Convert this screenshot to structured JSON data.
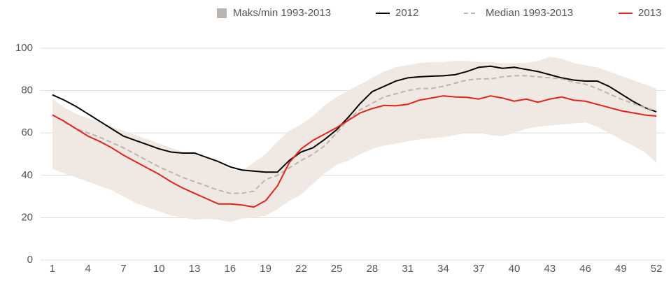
{
  "chart_data": {
    "type": "line",
    "x": [
      1,
      2,
      3,
      4,
      5,
      6,
      7,
      8,
      9,
      10,
      11,
      12,
      13,
      14,
      15,
      16,
      17,
      18,
      19,
      20,
      21,
      22,
      23,
      24,
      25,
      26,
      27,
      28,
      29,
      30,
      31,
      32,
      33,
      34,
      35,
      36,
      37,
      38,
      39,
      40,
      41,
      42,
      43,
      44,
      45,
      46,
      47,
      48,
      49,
      50,
      51,
      52
    ],
    "xlim": [
      0,
      52.7
    ],
    "xticks": [
      1,
      4,
      7,
      10,
      13,
      16,
      19,
      22,
      25,
      28,
      31,
      34,
      37,
      40,
      43,
      46,
      49,
      52
    ],
    "ylim": [
      0,
      100
    ],
    "yticks": [
      0,
      20,
      40,
      60,
      80,
      100
    ],
    "grid": true,
    "legend": "top-right",
    "band": {
      "name": "Maks/min 1993-2013",
      "color": "#efe8e3",
      "max": [
        76,
        72,
        69,
        67,
        65,
        63,
        61,
        59,
        57,
        55,
        53,
        51,
        50,
        48,
        46,
        43,
        42,
        46,
        50,
        56,
        61,
        64,
        68,
        73,
        77,
        80,
        83,
        86,
        89,
        91,
        92,
        93,
        93.5,
        93.5,
        94,
        94,
        93.5,
        93.5,
        93,
        93,
        93,
        94,
        96,
        95,
        93,
        92,
        91,
        89,
        87,
        85,
        83,
        81
      ],
      "min": [
        43,
        41,
        39,
        37,
        35,
        33,
        30,
        27,
        25,
        23,
        21,
        20,
        19,
        19.5,
        19,
        18,
        19.5,
        20,
        21,
        24,
        28,
        31,
        36,
        41,
        45,
        47,
        50,
        52.5,
        54,
        55,
        56,
        57,
        57.5,
        58,
        59,
        60,
        60,
        59,
        58.5,
        60,
        62,
        63,
        63.5,
        64,
        64.5,
        65,
        63,
        60,
        57,
        54,
        51,
        46
      ]
    },
    "series": [
      {
        "name": "2012",
        "color": "#000000",
        "dash": false,
        "values": [
          78,
          75.5,
          72.5,
          69,
          65.5,
          62,
          58.5,
          56.5,
          54.5,
          52.5,
          51,
          50.5,
          50.5,
          48.5,
          46.5,
          44,
          42.5,
          42,
          41.5,
          41.5,
          47,
          51,
          53,
          57,
          61.5,
          67.5,
          74,
          79.5,
          82,
          84.5,
          86,
          86.5,
          86.8,
          87,
          87.5,
          89,
          91,
          91.5,
          90.5,
          91,
          90,
          89,
          87.5,
          86,
          85,
          84.5,
          84.5,
          82,
          78.5,
          75,
          72,
          70
        ]
      },
      {
        "name": "Median 1993-2013",
        "color": "#bdb5ad",
        "dash": true,
        "values": [
          null,
          65,
          62,
          60,
          58,
          55.5,
          53,
          50,
          47,
          44,
          41.5,
          39,
          37,
          35,
          33,
          31.5,
          31.5,
          32.5,
          38,
          40,
          43.5,
          47,
          50,
          54,
          60,
          66.5,
          71,
          74,
          77,
          78.5,
          80,
          81,
          81,
          82,
          83.5,
          85,
          85.5,
          85.5,
          86.5,
          87,
          87,
          86.5,
          86,
          85.5,
          84,
          83,
          81,
          78.5,
          76,
          74,
          72,
          70.5
        ]
      },
      {
        "name": "2013",
        "color": "#e2231a",
        "dash": false,
        "values": [
          68.5,
          65.5,
          62,
          58.5,
          56,
          53,
          49.5,
          46.5,
          43.5,
          40.5,
          37,
          34,
          31.5,
          29,
          26.5,
          26.5,
          26,
          25,
          28,
          35,
          46,
          52.5,
          56.5,
          59.5,
          62.5,
          66,
          69.5,
          71.5,
          73,
          72.8,
          73.5,
          75.5,
          76.5,
          77.5,
          77,
          76.8,
          76,
          77.5,
          76.5,
          75,
          76,
          74.5,
          76,
          77,
          75.5,
          75,
          73.5,
          72,
          70.5,
          69.5,
          68.5,
          68
        ]
      }
    ]
  }
}
